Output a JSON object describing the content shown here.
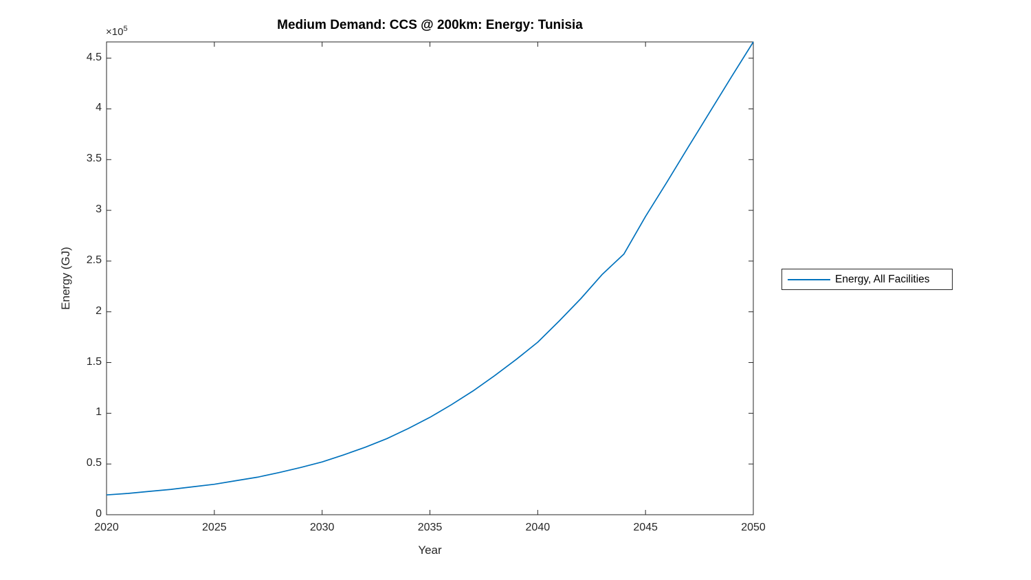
{
  "title": "Medium Demand: CCS @ 200km: Energy: Tunisia",
  "y_multiplier_base": "×10",
  "y_multiplier_exp": "5",
  "legend": {
    "label": "Energy, All Facilities"
  },
  "chart_data": {
    "type": "line",
    "title": "Medium Demand: CCS @ 200km: Energy: Tunisia",
    "xlabel": "Year",
    "ylabel": "Energy (GJ)",
    "y_scale_label": "×10^5",
    "grid": false,
    "legend_position": "right-outside",
    "xlim": [
      2020,
      2050
    ],
    "ylim": [
      0,
      466000
    ],
    "x_ticks": [
      2020,
      2025,
      2030,
      2035,
      2040,
      2045,
      2050
    ],
    "y_tick_values": [
      0,
      50000,
      100000,
      150000,
      200000,
      250000,
      300000,
      350000,
      400000,
      450000
    ],
    "y_tick_labels": [
      "0",
      "0.5",
      "1",
      "1.5",
      "2",
      "2.5",
      "3",
      "3.5",
      "4",
      "4.5"
    ],
    "axis_color": "#262626",
    "x": [
      2020,
      2021,
      2022,
      2023,
      2024,
      2025,
      2026,
      2027,
      2028,
      2029,
      2030,
      2031,
      2032,
      2033,
      2034,
      2035,
      2036,
      2037,
      2038,
      2039,
      2040,
      2041,
      2042,
      2043,
      2044,
      2045,
      2046,
      2047,
      2048,
      2049,
      2050
    ],
    "series": [
      {
        "name": "Energy, All Facilities",
        "color": "#0072BD",
        "values": [
          19500,
          21000,
          23000,
          25000,
          27500,
          30000,
          33500,
          37000,
          41500,
          46500,
          52000,
          59000,
          66500,
          75000,
          85000,
          96000,
          108500,
          122000,
          137000,
          153000,
          170000,
          191000,
          213000,
          237000,
          257000,
          294000,
          328000,
          363000,
          397500,
          432000,
          466000
        ]
      }
    ]
  }
}
